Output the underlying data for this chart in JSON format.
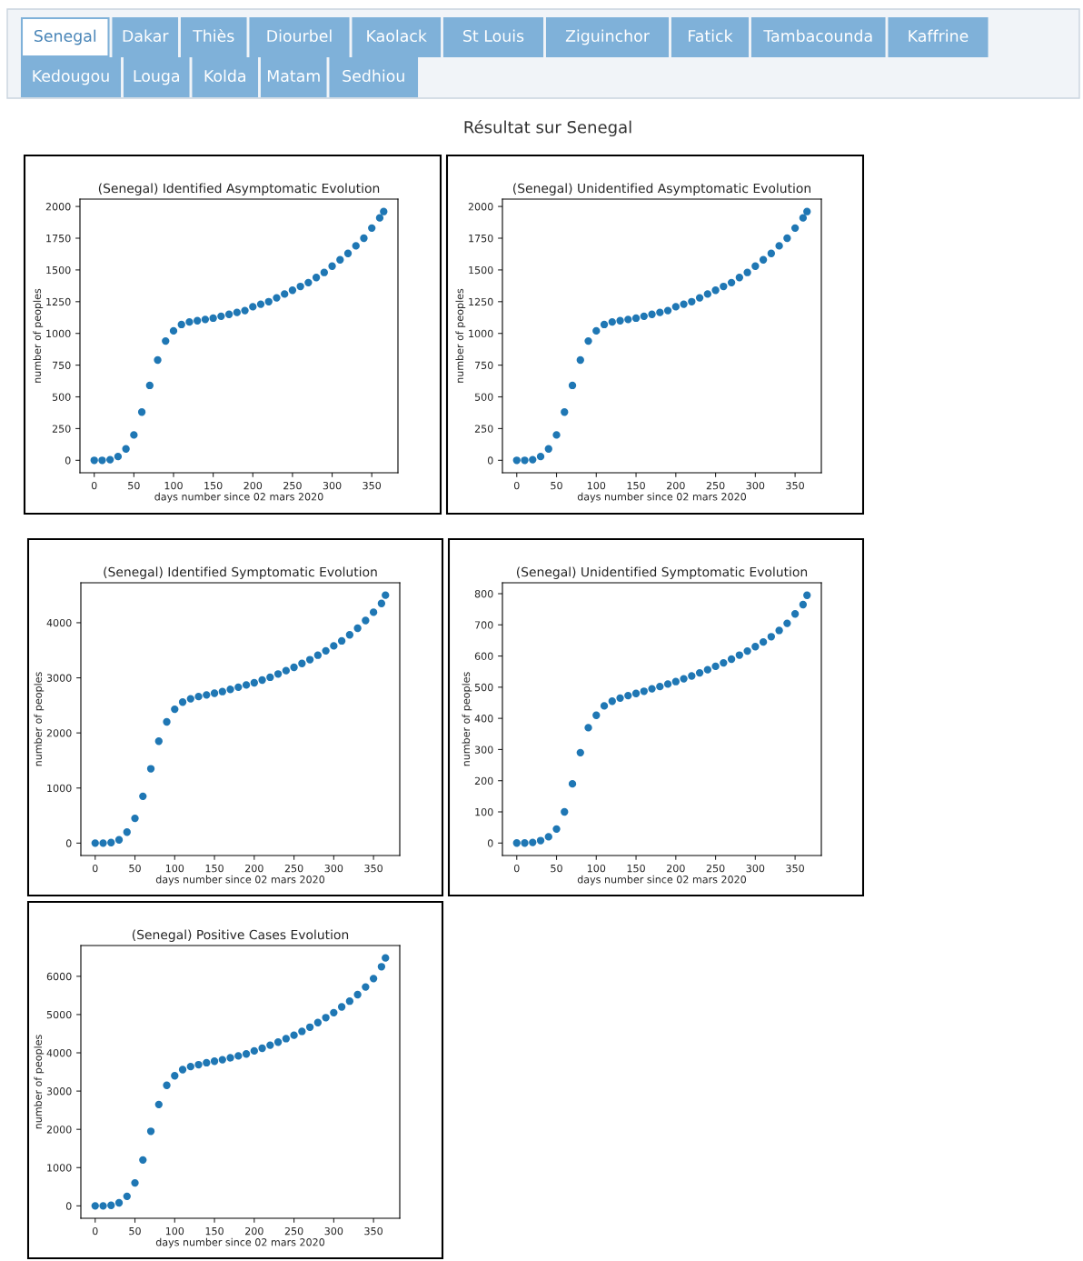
{
  "chart_data": [
    {
      "type": "other",
      "title": "Résultat sur Senegal",
      "annotations": [
        "Senegal",
        "Dakar",
        "Thiès",
        "Diourbel",
        "Kaolack",
        "St Louis",
        "Ziguinchor",
        "Fatick",
        "Tambacounda",
        "Kaffrine",
        "Kedougou",
        "Louga",
        "Kolda",
        "Matam",
        "Sedhiou"
      ]
    },
    {
      "type": "scatter",
      "title": "(Senegal) Identified Asymptomatic Evolution",
      "xlabel": "days number since 02 mars 2020",
      "ylabel": "number of peoples",
      "marker": "circle",
      "grid": false,
      "x": [
        0,
        10,
        20,
        30,
        40,
        50,
        60,
        70,
        80,
        90,
        100,
        110,
        120,
        130,
        140,
        150,
        160,
        170,
        180,
        190,
        200,
        210,
        220,
        230,
        240,
        250,
        260,
        270,
        280,
        290,
        300,
        310,
        320,
        330,
        340,
        350,
        360,
        365
      ],
      "series": [
        {
          "color": "#1f77b4",
          "values": [
            0,
            0,
            5,
            30,
            90,
            200,
            380,
            590,
            790,
            940,
            1020,
            1070,
            1090,
            1100,
            1110,
            1120,
            1135,
            1150,
            1165,
            1180,
            1210,
            1230,
            1250,
            1280,
            1310,
            1340,
            1370,
            1400,
            1440,
            1480,
            1530,
            1580,
            1630,
            1690,
            1750,
            1830,
            1910,
            1960
          ]
        }
      ],
      "xlim": [
        -18,
        383
      ],
      "ylim": [
        -98,
        2058
      ],
      "xticks": [
        0,
        50,
        100,
        150,
        200,
        250,
        300,
        350
      ],
      "yticks": [
        0,
        250,
        500,
        750,
        1000,
        1250,
        1500,
        1750,
        2000
      ]
    },
    {
      "type": "scatter",
      "title": "(Senegal) Unidentified Asymptomatic Evolution",
      "xlabel": "days number since 02 mars 2020",
      "ylabel": "number of peoples",
      "marker": "circle",
      "grid": false,
      "x": [
        0,
        10,
        20,
        30,
        40,
        50,
        60,
        70,
        80,
        90,
        100,
        110,
        120,
        130,
        140,
        150,
        160,
        170,
        180,
        190,
        200,
        210,
        220,
        230,
        240,
        250,
        260,
        270,
        280,
        290,
        300,
        310,
        320,
        330,
        340,
        350,
        360,
        365
      ],
      "series": [
        {
          "color": "#1f77b4",
          "values": [
            0,
            0,
            5,
            30,
            90,
            200,
            380,
            590,
            790,
            940,
            1020,
            1070,
            1090,
            1100,
            1110,
            1120,
            1135,
            1150,
            1165,
            1180,
            1210,
            1230,
            1250,
            1280,
            1310,
            1340,
            1370,
            1400,
            1440,
            1480,
            1530,
            1580,
            1630,
            1690,
            1750,
            1830,
            1910,
            1960
          ]
        }
      ],
      "xlim": [
        -18,
        383
      ],
      "ylim": [
        -98,
        2058
      ],
      "xticks": [
        0,
        50,
        100,
        150,
        200,
        250,
        300,
        350
      ],
      "yticks": [
        0,
        250,
        500,
        750,
        1000,
        1250,
        1500,
        1750,
        2000
      ]
    },
    {
      "type": "scatter",
      "title": "(Senegal) Identified Symptomatic Evolution",
      "xlabel": "days number since 02 mars 2020",
      "ylabel": "number of peoples",
      "marker": "circle",
      "grid": false,
      "x": [
        0,
        10,
        20,
        30,
        40,
        50,
        60,
        70,
        80,
        90,
        100,
        110,
        120,
        130,
        140,
        150,
        160,
        170,
        180,
        190,
        200,
        210,
        220,
        230,
        240,
        250,
        260,
        270,
        280,
        290,
        300,
        310,
        320,
        330,
        340,
        350,
        360,
        365
      ],
      "series": [
        {
          "color": "#1f77b4",
          "values": [
            0,
            0,
            10,
            60,
            200,
            450,
            850,
            1350,
            1850,
            2200,
            2430,
            2560,
            2620,
            2660,
            2690,
            2720,
            2750,
            2790,
            2830,
            2870,
            2910,
            2960,
            3010,
            3070,
            3130,
            3190,
            3260,
            3330,
            3410,
            3490,
            3580,
            3670,
            3780,
            3900,
            4040,
            4190,
            4350,
            4500
          ]
        }
      ],
      "xlim": [
        -18,
        383
      ],
      "ylim": [
        -225,
        4725
      ],
      "xticks": [
        0,
        50,
        100,
        150,
        200,
        250,
        300,
        350
      ],
      "yticks": [
        0,
        1000,
        2000,
        3000,
        4000
      ]
    },
    {
      "type": "scatter",
      "title": "(Senegal) Unidentified Symptomatic Evolution",
      "xlabel": "days number since 02 mars 2020",
      "ylabel": "number of peoples",
      "marker": "circle",
      "grid": false,
      "x": [
        0,
        10,
        20,
        30,
        40,
        50,
        60,
        70,
        80,
        90,
        100,
        110,
        120,
        130,
        140,
        150,
        160,
        170,
        180,
        190,
        200,
        210,
        220,
        230,
        240,
        250,
        260,
        270,
        280,
        290,
        300,
        310,
        320,
        330,
        340,
        350,
        360,
        365
      ],
      "series": [
        {
          "color": "#1f77b4",
          "values": [
            0,
            0,
            2,
            8,
            20,
            45,
            100,
            190,
            290,
            370,
            410,
            440,
            455,
            465,
            473,
            480,
            487,
            495,
            502,
            510,
            518,
            527,
            536,
            546,
            556,
            567,
            578,
            590,
            603,
            616,
            630,
            645,
            662,
            682,
            705,
            735,
            765,
            795
          ]
        }
      ],
      "xlim": [
        -18,
        383
      ],
      "ylim": [
        -40,
        835
      ],
      "xticks": [
        0,
        50,
        100,
        150,
        200,
        250,
        300,
        350
      ],
      "yticks": [
        0,
        100,
        200,
        300,
        400,
        500,
        600,
        700,
        800
      ]
    },
    {
      "type": "scatter",
      "title": "(Senegal) Positive Cases Evolution",
      "xlabel": "days number since 02 mars 2020",
      "ylabel": "number of peoples",
      "marker": "circle",
      "grid": false,
      "x": [
        0,
        10,
        20,
        30,
        40,
        50,
        60,
        70,
        80,
        90,
        100,
        110,
        120,
        130,
        140,
        150,
        160,
        170,
        180,
        190,
        200,
        210,
        220,
        230,
        240,
        250,
        260,
        270,
        280,
        290,
        300,
        310,
        320,
        330,
        340,
        350,
        360,
        365
      ],
      "series": [
        {
          "color": "#1f77b4",
          "values": [
            0,
            0,
            15,
            80,
            250,
            600,
            1200,
            1950,
            2650,
            3150,
            3400,
            3560,
            3640,
            3690,
            3740,
            3780,
            3820,
            3870,
            3920,
            3970,
            4050,
            4120,
            4200,
            4280,
            4370,
            4460,
            4560,
            4670,
            4790,
            4920,
            5050,
            5200,
            5350,
            5520,
            5720,
            5940,
            6250,
            6480
          ]
        }
      ],
      "xlim": [
        -18,
        383
      ],
      "ylim": [
        -324,
        6804
      ],
      "xticks": [
        0,
        50,
        100,
        150,
        200,
        250,
        300,
        350
      ],
      "yticks": [
        0,
        1000,
        2000,
        3000,
        4000,
        5000,
        6000
      ]
    }
  ]
}
